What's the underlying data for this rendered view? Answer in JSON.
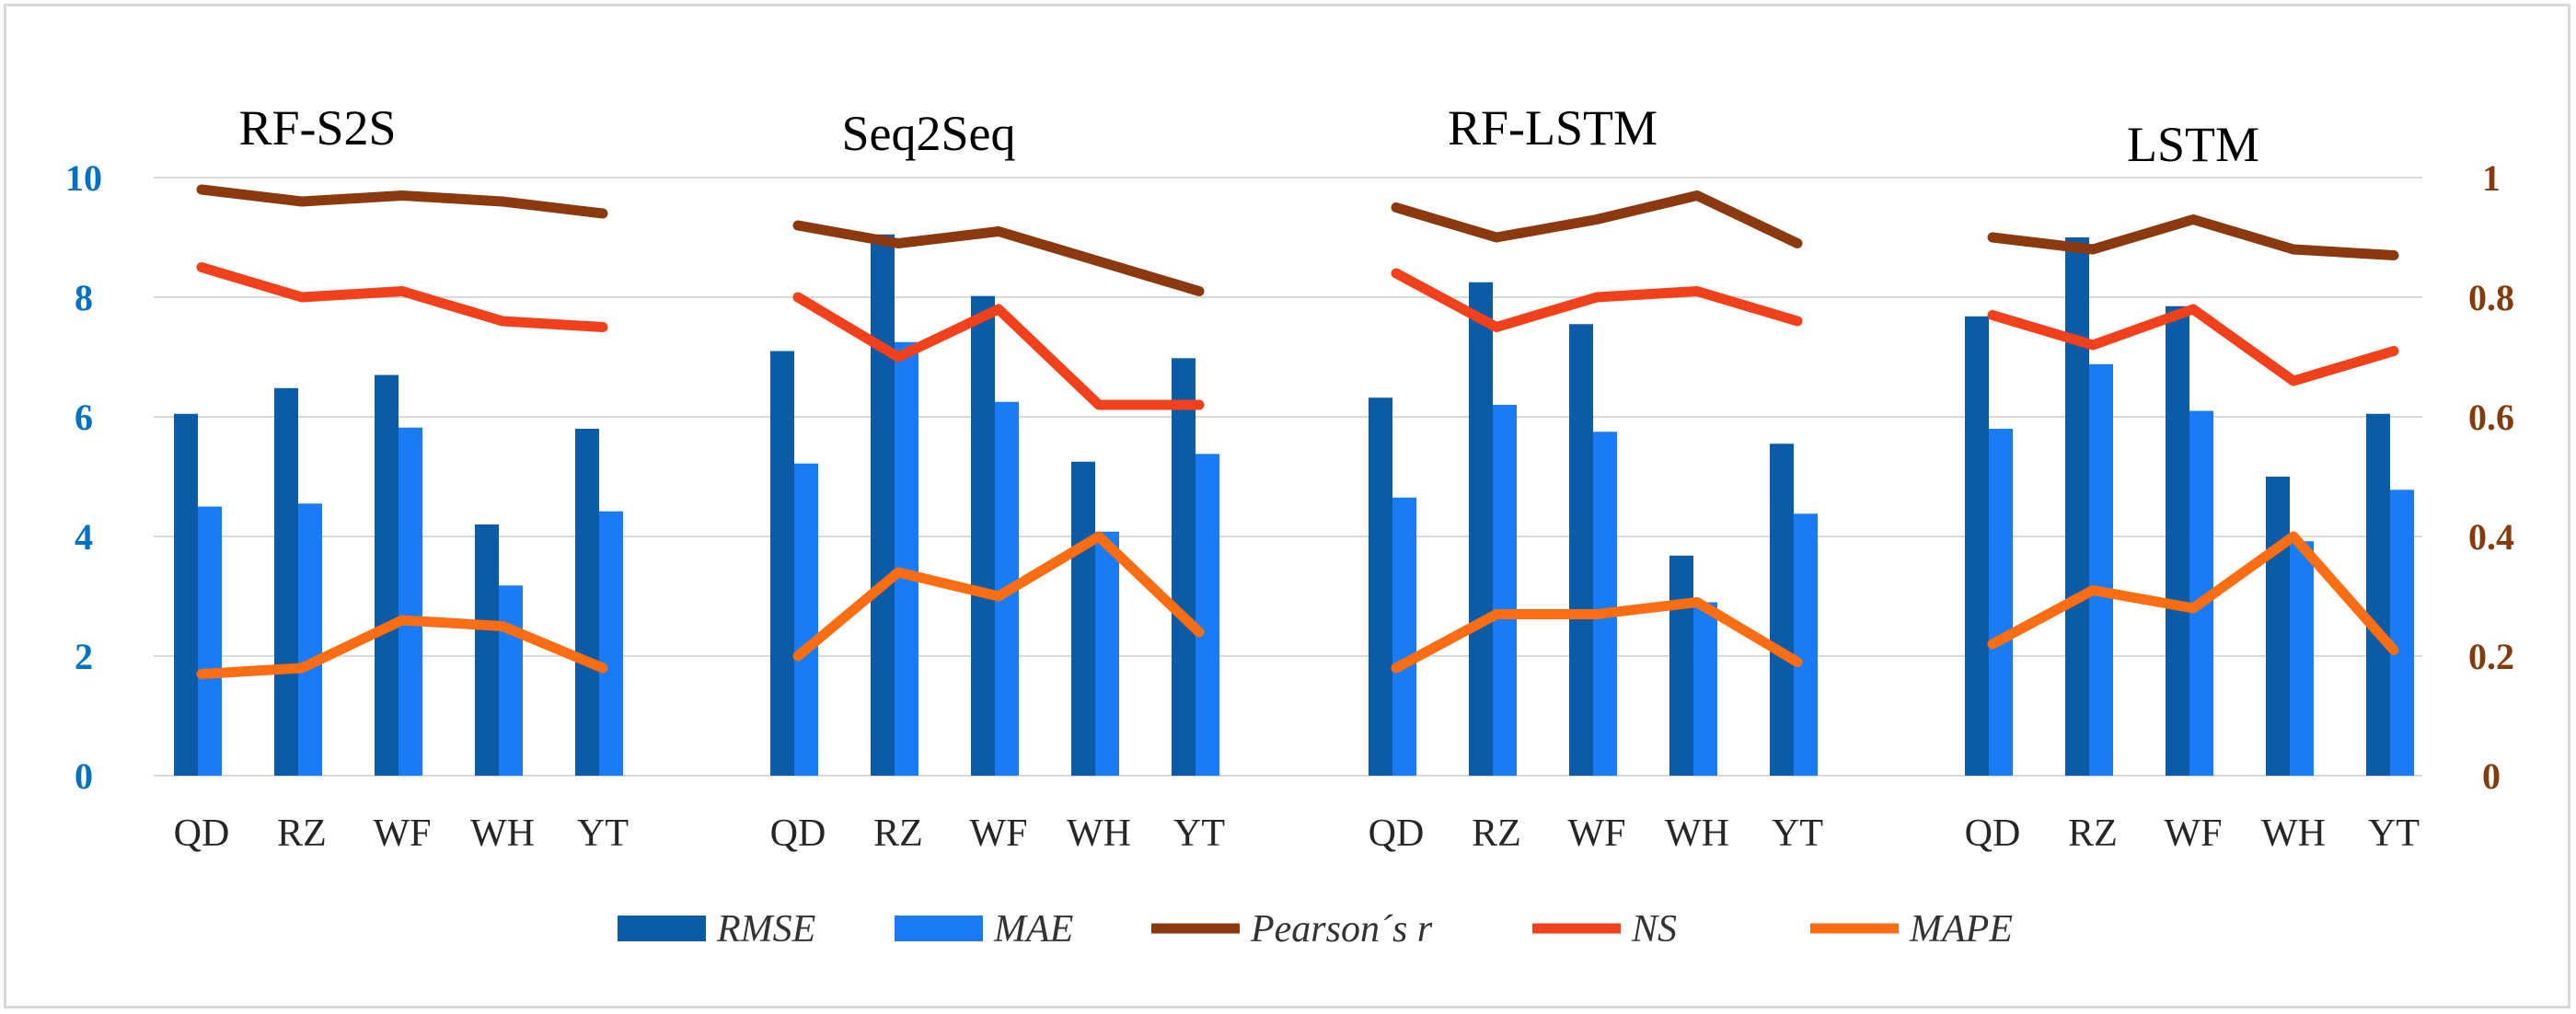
{
  "chart_data": {
    "type": "bar",
    "panels": [
      {
        "title": "RF-S2S",
        "categories": [
          "QD",
          "RZ",
          "WF",
          "WH",
          "YT"
        ],
        "series": [
          {
            "name": "RMSE",
            "axis": "left",
            "kind": "bar",
            "values": [
              6.05,
              6.48,
              6.7,
              4.2,
              5.8
            ]
          },
          {
            "name": "MAE",
            "axis": "left",
            "kind": "bar",
            "values": [
              4.5,
              4.55,
              5.82,
              3.18,
              4.42
            ]
          },
          {
            "name": "Pearson´s r",
            "axis": "right",
            "kind": "line",
            "values": [
              0.98,
              0.96,
              0.97,
              0.96,
              0.94
            ]
          },
          {
            "name": "NS",
            "axis": "right",
            "kind": "line",
            "values": [
              0.85,
              0.8,
              0.81,
              0.76,
              0.75
            ]
          },
          {
            "name": "MAPE",
            "axis": "right",
            "kind": "line",
            "values": [
              0.17,
              0.18,
              0.26,
              0.25,
              0.18
            ]
          }
        ]
      },
      {
        "title": "Seq2Seq",
        "categories": [
          "QD",
          "RZ",
          "WF",
          "WH",
          "YT"
        ],
        "series": [
          {
            "name": "RMSE",
            "axis": "left",
            "kind": "bar",
            "values": [
              7.1,
              9.05,
              8.02,
              5.25,
              6.98
            ]
          },
          {
            "name": "MAE",
            "axis": "left",
            "kind": "bar",
            "values": [
              5.22,
              7.25,
              6.25,
              4.08,
              5.38
            ]
          },
          {
            "name": "Pearson´s r",
            "axis": "right",
            "kind": "line",
            "values": [
              0.92,
              0.89,
              0.91,
              0.86,
              0.81
            ]
          },
          {
            "name": "NS",
            "axis": "right",
            "kind": "line",
            "values": [
              0.8,
              0.7,
              0.78,
              0.62,
              0.62
            ]
          },
          {
            "name": "MAPE",
            "axis": "right",
            "kind": "line",
            "values": [
              0.2,
              0.34,
              0.3,
              0.4,
              0.24
            ]
          }
        ]
      },
      {
        "title": "RF-LSTM",
        "categories": [
          "QD",
          "RZ",
          "WF",
          "WH",
          "YT"
        ],
        "series": [
          {
            "name": "RMSE",
            "axis": "left",
            "kind": "bar",
            "values": [
              6.32,
              8.25,
              7.55,
              3.68,
              5.55
            ]
          },
          {
            "name": "MAE",
            "axis": "left",
            "kind": "bar",
            "values": [
              4.65,
              6.2,
              5.75,
              2.9,
              4.38
            ]
          },
          {
            "name": "Pearson´s r",
            "axis": "right",
            "kind": "line",
            "values": [
              0.95,
              0.9,
              0.93,
              0.97,
              0.89
            ]
          },
          {
            "name": "NS",
            "axis": "right",
            "kind": "line",
            "values": [
              0.84,
              0.75,
              0.8,
              0.81,
              0.76
            ]
          },
          {
            "name": "MAPE",
            "axis": "right",
            "kind": "line",
            "values": [
              0.18,
              0.27,
              0.27,
              0.29,
              0.19
            ]
          }
        ]
      },
      {
        "title": "LSTM",
        "categories": [
          "QD",
          "RZ",
          "WF",
          "WH",
          "YT"
        ],
        "series": [
          {
            "name": "RMSE",
            "axis": "left",
            "kind": "bar",
            "values": [
              7.68,
              9.0,
              7.85,
              5.0,
              6.05
            ]
          },
          {
            "name": "MAE",
            "axis": "left",
            "kind": "bar",
            "values": [
              5.8,
              6.88,
              6.1,
              3.92,
              4.78
            ]
          },
          {
            "name": "Pearson´s r",
            "axis": "right",
            "kind": "line",
            "values": [
              0.9,
              0.88,
              0.93,
              0.88,
              0.87
            ]
          },
          {
            "name": "NS",
            "axis": "right",
            "kind": "line",
            "values": [
              0.77,
              0.72,
              0.78,
              0.66,
              0.71
            ]
          },
          {
            "name": "MAPE",
            "axis": "right",
            "kind": "line",
            "values": [
              0.22,
              0.31,
              0.28,
              0.4,
              0.21
            ]
          }
        ]
      }
    ],
    "left_axis": {
      "ylim": [
        0,
        10
      ],
      "ticks": [
        "0",
        "2",
        "4",
        "6",
        "8",
        "10"
      ]
    },
    "right_axis": {
      "ylim": [
        0,
        1
      ],
      "ticks": [
        "0",
        "0.2",
        "0.4",
        "0.6",
        "0.8",
        "1"
      ]
    },
    "grid": true,
    "legend_position": "bottom",
    "legend": [
      {
        "label": "RMSE",
        "kind": "bar"
      },
      {
        "label": "MAE",
        "kind": "bar"
      },
      {
        "label": "Pearson´s r",
        "kind": "line"
      },
      {
        "label": "NS",
        "kind": "line"
      },
      {
        "label": "MAPE",
        "kind": "line"
      }
    ],
    "colors": {
      "RMSE": "#0b5ba6",
      "MAE": "#1a7cf5",
      "Pearson´s r": "#8b3a0f",
      "NS": "#f0401c",
      "MAPE": "#fb6d12",
      "left_axis_text": "#0070c0",
      "right_axis_text": "#843c0c",
      "grid": "#d9d9d9"
    }
  }
}
